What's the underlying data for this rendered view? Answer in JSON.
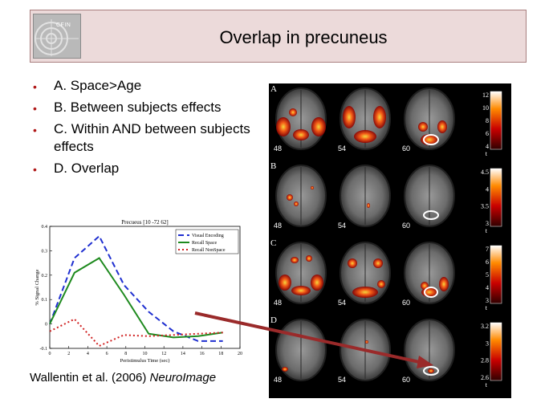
{
  "slide": {
    "title": "Overlap in precuneus",
    "logo_text": "CFIN",
    "bullets": [
      "A. Space>Age",
      "B. Between subjects effects",
      "C. Within AND between subjects effects",
      "D. Overlap"
    ],
    "bullet_color": "#b01818",
    "citation_prefix": "Wallentin et al. (2006) ",
    "citation_journal": "NeuroImage"
  },
  "figure": {
    "row_letters": [
      "A",
      "B",
      "C",
      "D"
    ],
    "slice_labels": [
      "48",
      "54",
      "60"
    ],
    "colorbar_axis": "t",
    "colorbar_ticks": [
      [
        "12",
        "10",
        "8",
        "6",
        "4"
      ],
      [
        "4.5",
        "4",
        "3.5",
        "3"
      ],
      [
        "7",
        "6",
        "5",
        "4",
        "3"
      ],
      [
        "3.2",
        "3",
        "2.8",
        "2.6"
      ]
    ]
  },
  "chart_data": {
    "type": "line",
    "title": "Precueus [10 -72 62]",
    "xlabel": "Peristimulus Time (sec)",
    "ylabel": "% Signal Change",
    "xlim": [
      0,
      20
    ],
    "ylim": [
      -0.1,
      0.4
    ],
    "xticks": [
      0,
      2,
      4,
      6,
      8,
      10,
      12,
      14,
      16,
      18,
      20
    ],
    "yticks": [
      -0.1,
      0,
      0.1,
      0.2,
      0.3,
      0.4
    ],
    "legend_position": "top-right",
    "series": [
      {
        "name": "Visual Encoding",
        "color": "#1f2fd0",
        "style": "dashed",
        "x": [
          0,
          2.6,
          5.2,
          7.8,
          10.4,
          13,
          15.6,
          18.2
        ],
        "y": [
          0,
          0.27,
          0.36,
          0.16,
          0.05,
          -0.03,
          -0.07,
          -0.07
        ]
      },
      {
        "name": "Recall Space",
        "color": "#1e8a1e",
        "style": "solid",
        "x": [
          0,
          2.6,
          5.2,
          7.8,
          10.4,
          13,
          15.6,
          18.2
        ],
        "y": [
          0,
          0.21,
          0.27,
          0.12,
          -0.04,
          -0.055,
          -0.05,
          -0.035
        ]
      },
      {
        "name": "Recall NonSpace",
        "color": "#d02020",
        "style": "dotted",
        "x": [
          0,
          2.6,
          5.2,
          7.8,
          10.4,
          13,
          15.6,
          18.2
        ],
        "y": [
          -0.03,
          0.02,
          -0.09,
          -0.045,
          -0.05,
          -0.045,
          -0.04,
          -0.035
        ]
      }
    ]
  }
}
